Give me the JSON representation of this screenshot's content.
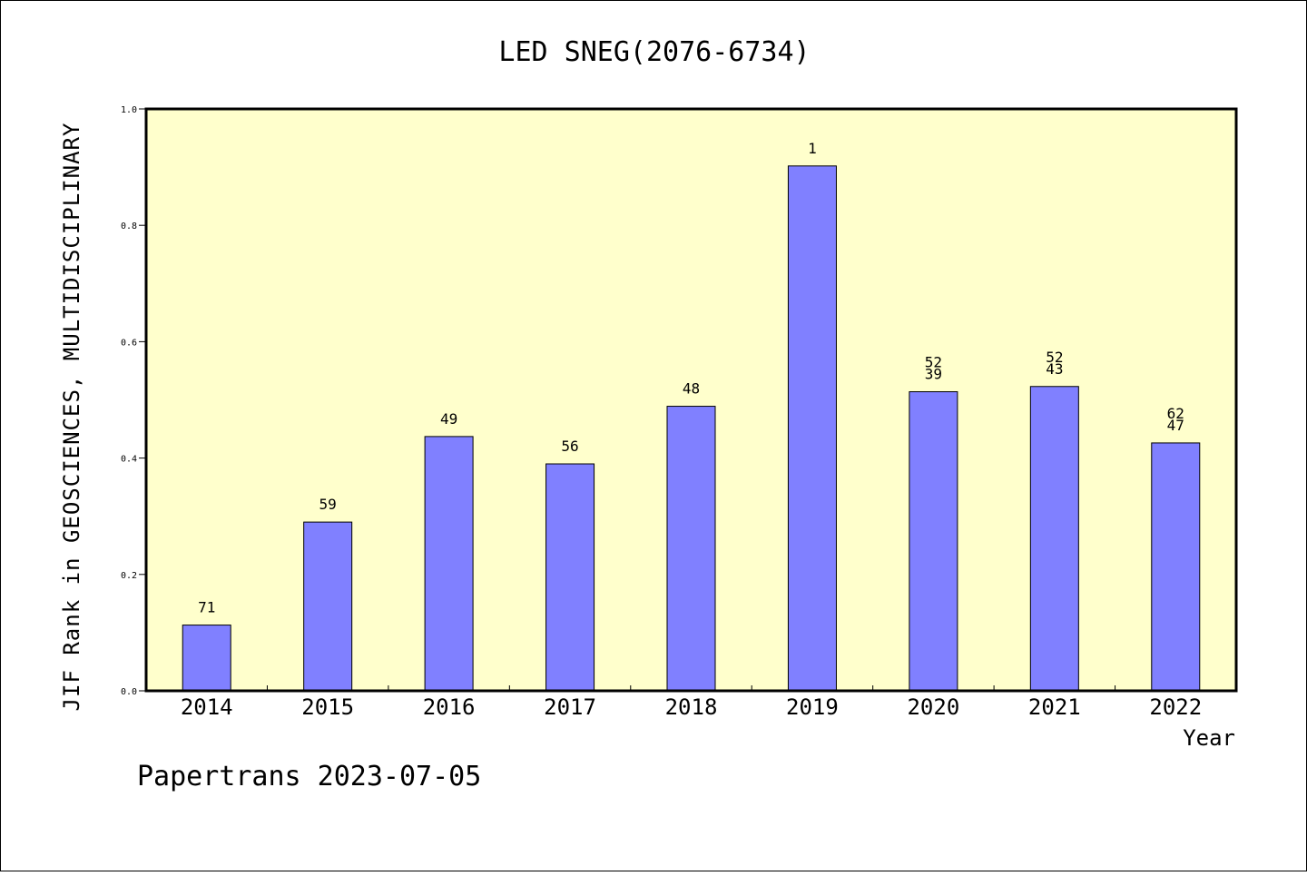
{
  "chart_data": {
    "type": "bar",
    "title": "LED SNEG(2076-6734)",
    "xlabel": "Year",
    "ylabel": "JIF Rank in GEOSCIENCES, MULTIDISCIPLINARY",
    "ylim": [
      0,
      1.0
    ],
    "yticks": [
      "0.0",
      "0.2",
      "0.4",
      "0.6",
      "0.8",
      "1.0"
    ],
    "categories": [
      "2014",
      "2015",
      "2016",
      "2017",
      "2018",
      "2019",
      "2020",
      "2021",
      "2022"
    ],
    "values": [
      0.113,
      0.29,
      0.437,
      0.39,
      0.489,
      0.902,
      0.514,
      0.523,
      0.426
    ],
    "bar_labels": [
      [
        "71"
      ],
      [
        "59"
      ],
      [
        "49"
      ],
      [
        "56"
      ],
      [
        "48"
      ],
      [
        "1"
      ],
      [
        "52",
        "39"
      ],
      [
        "52",
        "43"
      ],
      [
        "62",
        "47"
      ]
    ],
    "grid": false,
    "legend": "none",
    "colors": {
      "bar": "#8080ff",
      "plot_background": "#ffffcc"
    }
  },
  "footer": "Papertrans 2023-07-05"
}
